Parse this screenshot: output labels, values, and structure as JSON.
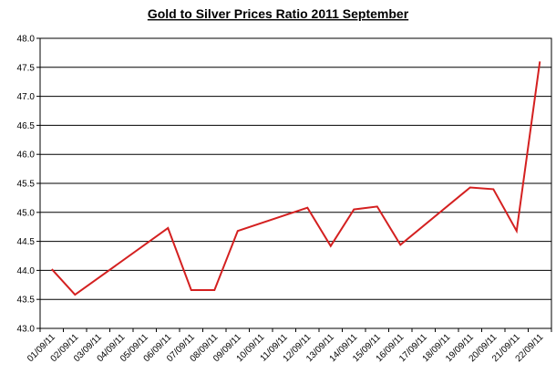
{
  "chart_data": {
    "type": "line",
    "title": "Gold to Silver Prices Ratio 2011 September",
    "categories": [
      "01/09/11",
      "02/09/11",
      "03/09/11",
      "04/09/11",
      "05/09/11",
      "06/09/11",
      "07/09/11",
      "08/09/11",
      "09/09/11",
      "10/09/11",
      "11/09/11",
      "12/09/11",
      "13/09/11",
      "14/09/11",
      "15/09/11",
      "16/09/11",
      "17/09/11",
      "18/09/11",
      "19/09/11",
      "20/09/11",
      "21/09/11",
      "22/09/11"
    ],
    "series": [
      {
        "color": "#d42020",
        "x": [
          "01/09/11",
          "02/09/11",
          "06/09/11",
          "07/09/11",
          "08/09/11",
          "09/09/11",
          "12/09/11",
          "13/09/11",
          "14/09/11",
          "15/09/11",
          "16/09/11",
          "19/09/11",
          "20/09/11",
          "21/09/11",
          "22/09/11"
        ],
        "values": [
          44.02,
          43.58,
          44.73,
          43.66,
          43.66,
          44.68,
          45.08,
          44.42,
          45.05,
          45.1,
          44.44,
          45.43,
          45.4,
          44.68,
          47.6
        ]
      }
    ],
    "ylim": [
      43,
      48
    ],
    "yticks": [
      {
        "value": 43,
        "label": "43.0"
      },
      43.5,
      {
        "value": 44,
        "label": "44.0"
      },
      44.5,
      {
        "value": 45,
        "label": "45.0"
      },
      45.5,
      {
        "value": 46,
        "label": "46.0"
      },
      46.5,
      {
        "value": 47,
        "label": "47.0"
      },
      47.5,
      {
        "value": 48,
        "label": "48.0"
      }
    ],
    "grid": true
  }
}
